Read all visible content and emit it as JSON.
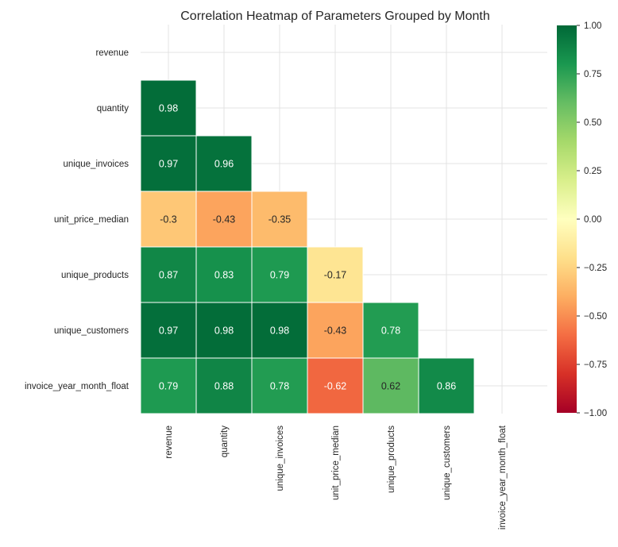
{
  "chart_data": {
    "type": "heatmap",
    "title": "Correlation Heatmap of Parameters Grouped by Month",
    "labels": [
      "revenue",
      "quantity",
      "unique_invoices",
      "unit_price_median",
      "unique_products",
      "unique_customers",
      "invoice_year_month_float"
    ],
    "mask": "upper-triangle-including-diagonal",
    "values": [
      [
        null,
        null,
        null,
        null,
        null,
        null,
        null
      ],
      [
        0.98,
        null,
        null,
        null,
        null,
        null,
        null
      ],
      [
        0.97,
        0.96,
        null,
        null,
        null,
        null,
        null
      ],
      [
        -0.3,
        -0.43,
        -0.35,
        null,
        null,
        null,
        null
      ],
      [
        0.87,
        0.83,
        0.79,
        -0.17,
        null,
        null,
        null
      ],
      [
        0.97,
        0.98,
        0.98,
        -0.43,
        0.78,
        null,
        null
      ],
      [
        0.79,
        0.88,
        0.78,
        -0.62,
        0.62,
        0.86,
        null
      ]
    ],
    "value_labels": [
      [
        null,
        null,
        null,
        null,
        null,
        null,
        null
      ],
      [
        "0.98",
        null,
        null,
        null,
        null,
        null,
        null
      ],
      [
        "0.97",
        "0.96",
        null,
        null,
        null,
        null,
        null
      ],
      [
        "-0.3",
        "-0.43",
        "-0.35",
        null,
        null,
        null,
        null
      ],
      [
        "0.87",
        "0.83",
        "0.79",
        "-0.17",
        null,
        null,
        null
      ],
      [
        "0.97",
        "0.98",
        "0.98",
        "-0.43",
        "0.78",
        null,
        null
      ],
      [
        "0.79",
        "0.88",
        "0.78",
        "-0.62",
        "0.62",
        "0.86",
        null
      ]
    ],
    "colormap": "RdYlGn",
    "colorbar": {
      "vmin": -1.0,
      "vmax": 1.0,
      "ticks": [
        1.0,
        0.75,
        0.5,
        0.25,
        0.0,
        -0.25,
        -0.5,
        -0.75,
        -1.0
      ],
      "tick_labels": [
        "1.00",
        "0.75",
        "0.50",
        "0.25",
        "0.00",
        "−0.25",
        "−0.50",
        "−0.75",
        "−1.00"
      ],
      "position": "right"
    },
    "grid": true
  }
}
